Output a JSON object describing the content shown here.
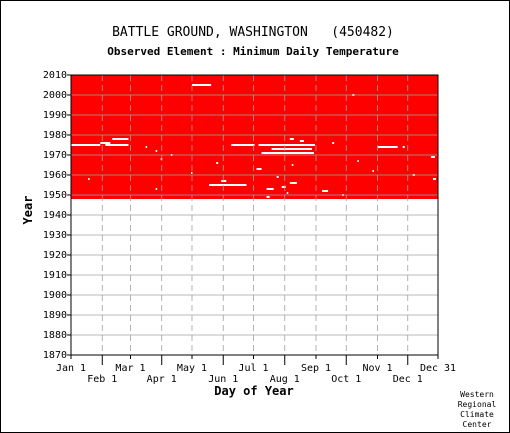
{
  "chart_data": {
    "type": "heatmap",
    "title": "BATTLE GROUND, WASHINGTON   (450482)",
    "subtitle": "Observed Element : Minimum Daily Temperature",
    "xlabel": "Day of Year",
    "ylabel": "Year",
    "x_range_day_of_year": [
      1,
      365
    ],
    "ylim": [
      1870,
      2010
    ],
    "y_ticks": [
      1870,
      1880,
      1890,
      1900,
      1910,
      1920,
      1930,
      1940,
      1950,
      1960,
      1970,
      1980,
      1990,
      2000,
      2010
    ],
    "x_ticks_upper": [
      {
        "label": "Jan 1",
        "day": 1
      },
      {
        "label": "Mar 1",
        "day": 60
      },
      {
        "label": "May 1",
        "day": 121
      },
      {
        "label": "Jul 1",
        "day": 182
      },
      {
        "label": "Sep 1",
        "day": 244
      },
      {
        "label": "Nov 1",
        "day": 305
      },
      {
        "label": "Dec 31",
        "day": 365
      }
    ],
    "x_ticks_lower": [
      {
        "label": "Feb 1",
        "day": 32
      },
      {
        "label": "Apr 1",
        "day": 91
      },
      {
        "label": "Jun 1",
        "day": 152
      },
      {
        "label": "Aug 1",
        "day": 213
      },
      {
        "label": "Oct 1",
        "day": 274
      },
      {
        "label": "Dec 1",
        "day": 335
      }
    ],
    "grid": true,
    "data_color": "#ff0000",
    "data_start_year": 1948,
    "data_end_year": 2010,
    "missing_segments": [
      {
        "year": 2005,
        "start_day": 121,
        "end_day": 140
      },
      {
        "year": 2000,
        "start_day": 280,
        "end_day": 282
      },
      {
        "year": 1978,
        "start_day": 42,
        "end_day": 58
      },
      {
        "year": 1978,
        "start_day": 218,
        "end_day": 222
      },
      {
        "year": 1977,
        "start_day": 228,
        "end_day": 232
      },
      {
        "year": 1976,
        "start_day": 30,
        "end_day": 40
      },
      {
        "year": 1976,
        "start_day": 260,
        "end_day": 262
      },
      {
        "year": 1975,
        "start_day": 1,
        "end_day": 30
      },
      {
        "year": 1975,
        "start_day": 35,
        "end_day": 58
      },
      {
        "year": 1975,
        "start_day": 160,
        "end_day": 183
      },
      {
        "year": 1975,
        "start_day": 187,
        "end_day": 243
      },
      {
        "year": 1974,
        "start_day": 305,
        "end_day": 325
      },
      {
        "year": 1974,
        "start_day": 330,
        "end_day": 332
      },
      {
        "year": 1974,
        "start_day": 75,
        "end_day": 76
      },
      {
        "year": 1973,
        "start_day": 200,
        "end_day": 240
      },
      {
        "year": 1972,
        "start_day": 85,
        "end_day": 86
      },
      {
        "year": 1971,
        "start_day": 190,
        "end_day": 242
      },
      {
        "year": 1970,
        "start_day": 100,
        "end_day": 101
      },
      {
        "year": 1969,
        "start_day": 358,
        "end_day": 362
      },
      {
        "year": 1968,
        "start_day": 90,
        "end_day": 91
      },
      {
        "year": 1967,
        "start_day": 285,
        "end_day": 286
      },
      {
        "year": 1966,
        "start_day": 145,
        "end_day": 147
      },
      {
        "year": 1965,
        "start_day": 220,
        "end_day": 221
      },
      {
        "year": 1963,
        "start_day": 185,
        "end_day": 190
      },
      {
        "year": 1962,
        "start_day": 300,
        "end_day": 301
      },
      {
        "year": 1961,
        "start_day": 120,
        "end_day": 121
      },
      {
        "year": 1960,
        "start_day": 340,
        "end_day": 342
      },
      {
        "year": 1959,
        "start_day": 205,
        "end_day": 207
      },
      {
        "year": 1958,
        "start_day": 18,
        "end_day": 19
      },
      {
        "year": 1958,
        "start_day": 360,
        "end_day": 363
      },
      {
        "year": 1957,
        "start_day": 150,
        "end_day": 155
      },
      {
        "year": 1956,
        "start_day": 218,
        "end_day": 225
      },
      {
        "year": 1955,
        "start_day": 138,
        "end_day": 175
      },
      {
        "year": 1954,
        "start_day": 210,
        "end_day": 214
      },
      {
        "year": 1953,
        "start_day": 85,
        "end_day": 86
      },
      {
        "year": 1953,
        "start_day": 195,
        "end_day": 202
      },
      {
        "year": 1952,
        "start_day": 250,
        "end_day": 256
      },
      {
        "year": 1951,
        "start_day": 215,
        "end_day": 216
      },
      {
        "year": 1950,
        "start_day": 270,
        "end_day": 271
      },
      {
        "year": 1949,
        "start_day": 195,
        "end_day": 198
      }
    ]
  },
  "credit": {
    "line1": "Western",
    "line2": "Regional",
    "line3": "Climate",
    "line4": "Center"
  }
}
